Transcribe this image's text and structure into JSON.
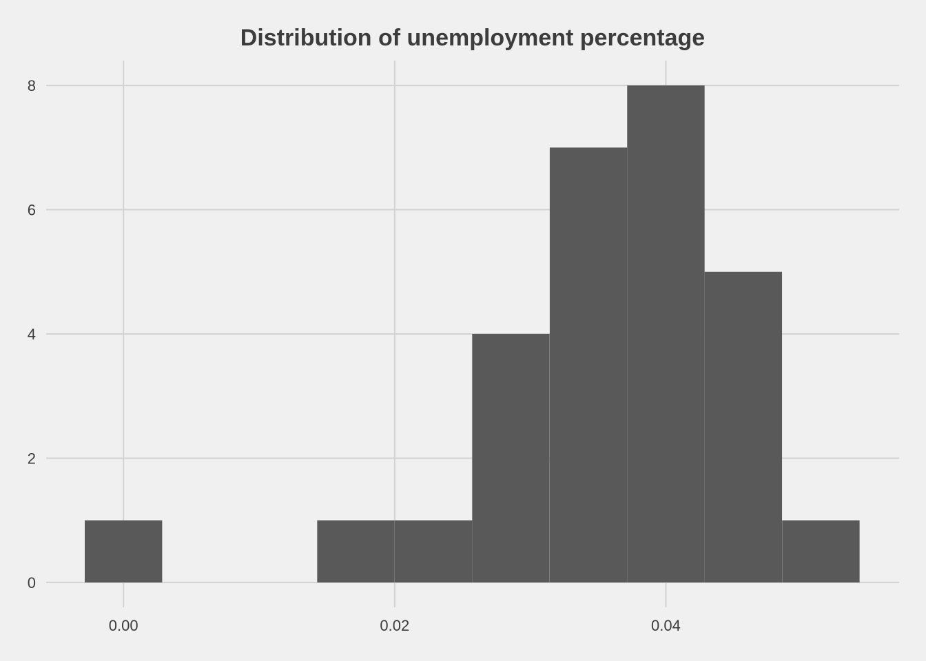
{
  "chart_data": {
    "type": "bar",
    "subtype": "histogram",
    "title": "Distribution of unemployment percentage",
    "xlabel": "",
    "ylabel": "",
    "bin_centers": [
      0.0,
      0.00571,
      0.01143,
      0.01714,
      0.02286,
      0.02857,
      0.03429,
      0.04,
      0.04571,
      0.05143
    ],
    "bin_width": 0.00571,
    "values": [
      1,
      0,
      0,
      1,
      1,
      4,
      7,
      8,
      5,
      1
    ],
    "xlim": [
      -0.0057,
      0.0572
    ],
    "ylim": [
      -0.4,
      8.4
    ],
    "x_ticks": [
      "0.00",
      "0.02",
      "0.04"
    ],
    "x_tick_values": [
      0.0,
      0.02,
      0.04
    ],
    "y_ticks": [
      "0",
      "2",
      "4",
      "6",
      "8"
    ],
    "y_tick_values": [
      0,
      2,
      4,
      6,
      8
    ],
    "grid": true,
    "colors": {
      "background": "#f0f0f0",
      "grid": "#d2d2d2",
      "bar": "#595959",
      "text": "#3c3c3c"
    }
  }
}
